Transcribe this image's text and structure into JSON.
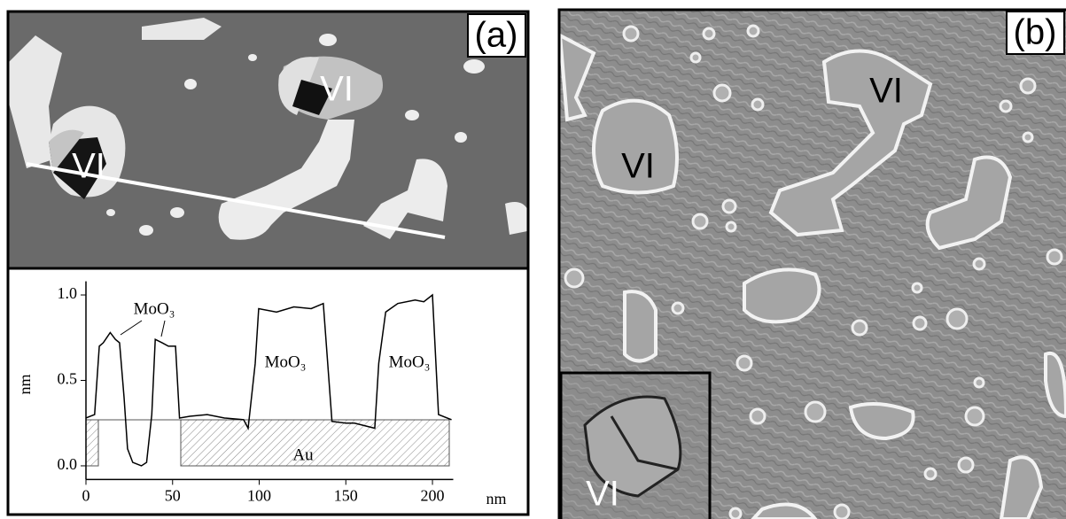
{
  "panels": {
    "a": {
      "label": "(a)",
      "markers": [
        "VI",
        "VI"
      ]
    },
    "b": {
      "label": "(b)",
      "markers": [
        "VI",
        "VI"
      ],
      "inset_marker": "VI"
    }
  },
  "chart_data": {
    "type": "line",
    "xlabel": "nm",
    "ylabel": "nm",
    "annotations": [
      "MoO₃",
      "MoO₃",
      "MoO₃",
      "Au"
    ],
    "x": [
      0,
      5,
      7.7,
      10,
      14,
      17,
      19.4,
      22,
      24,
      27,
      32,
      35,
      38,
      40,
      44,
      47.6,
      51.7,
      54,
      60,
      70,
      80,
      91,
      93.6,
      97.7,
      99.7,
      110,
      120,
      130,
      137,
      142,
      150,
      155,
      166.7,
      169,
      173,
      180,
      190,
      195,
      200,
      203.5,
      211
    ],
    "series": [
      {
        "color": "#000000",
        "values": [
          0.28,
          0.3,
          0.7,
          0.72,
          0.78,
          0.74,
          0.72,
          0.4,
          0.1,
          0.02,
          0.0,
          0.02,
          0.3,
          0.74,
          0.72,
          0.7,
          0.7,
          0.28,
          0.29,
          0.3,
          0.28,
          0.27,
          0.22,
          0.6,
          0.92,
          0.9,
          0.93,
          0.92,
          0.95,
          0.26,
          0.25,
          0.25,
          0.22,
          0.6,
          0.9,
          0.95,
          0.97,
          0.96,
          1.0,
          0.3,
          0.27
        ]
      }
    ],
    "xlim": [
      0,
      212
    ],
    "ylim": [
      -0.08,
      1.08
    ],
    "xticks": [
      0,
      50,
      100,
      150,
      200
    ],
    "yticks": [
      {
        "value": 0,
        "label": "0.0"
      },
      0.5,
      {
        "value": 1,
        "label": "1.0"
      }
    ]
  }
}
